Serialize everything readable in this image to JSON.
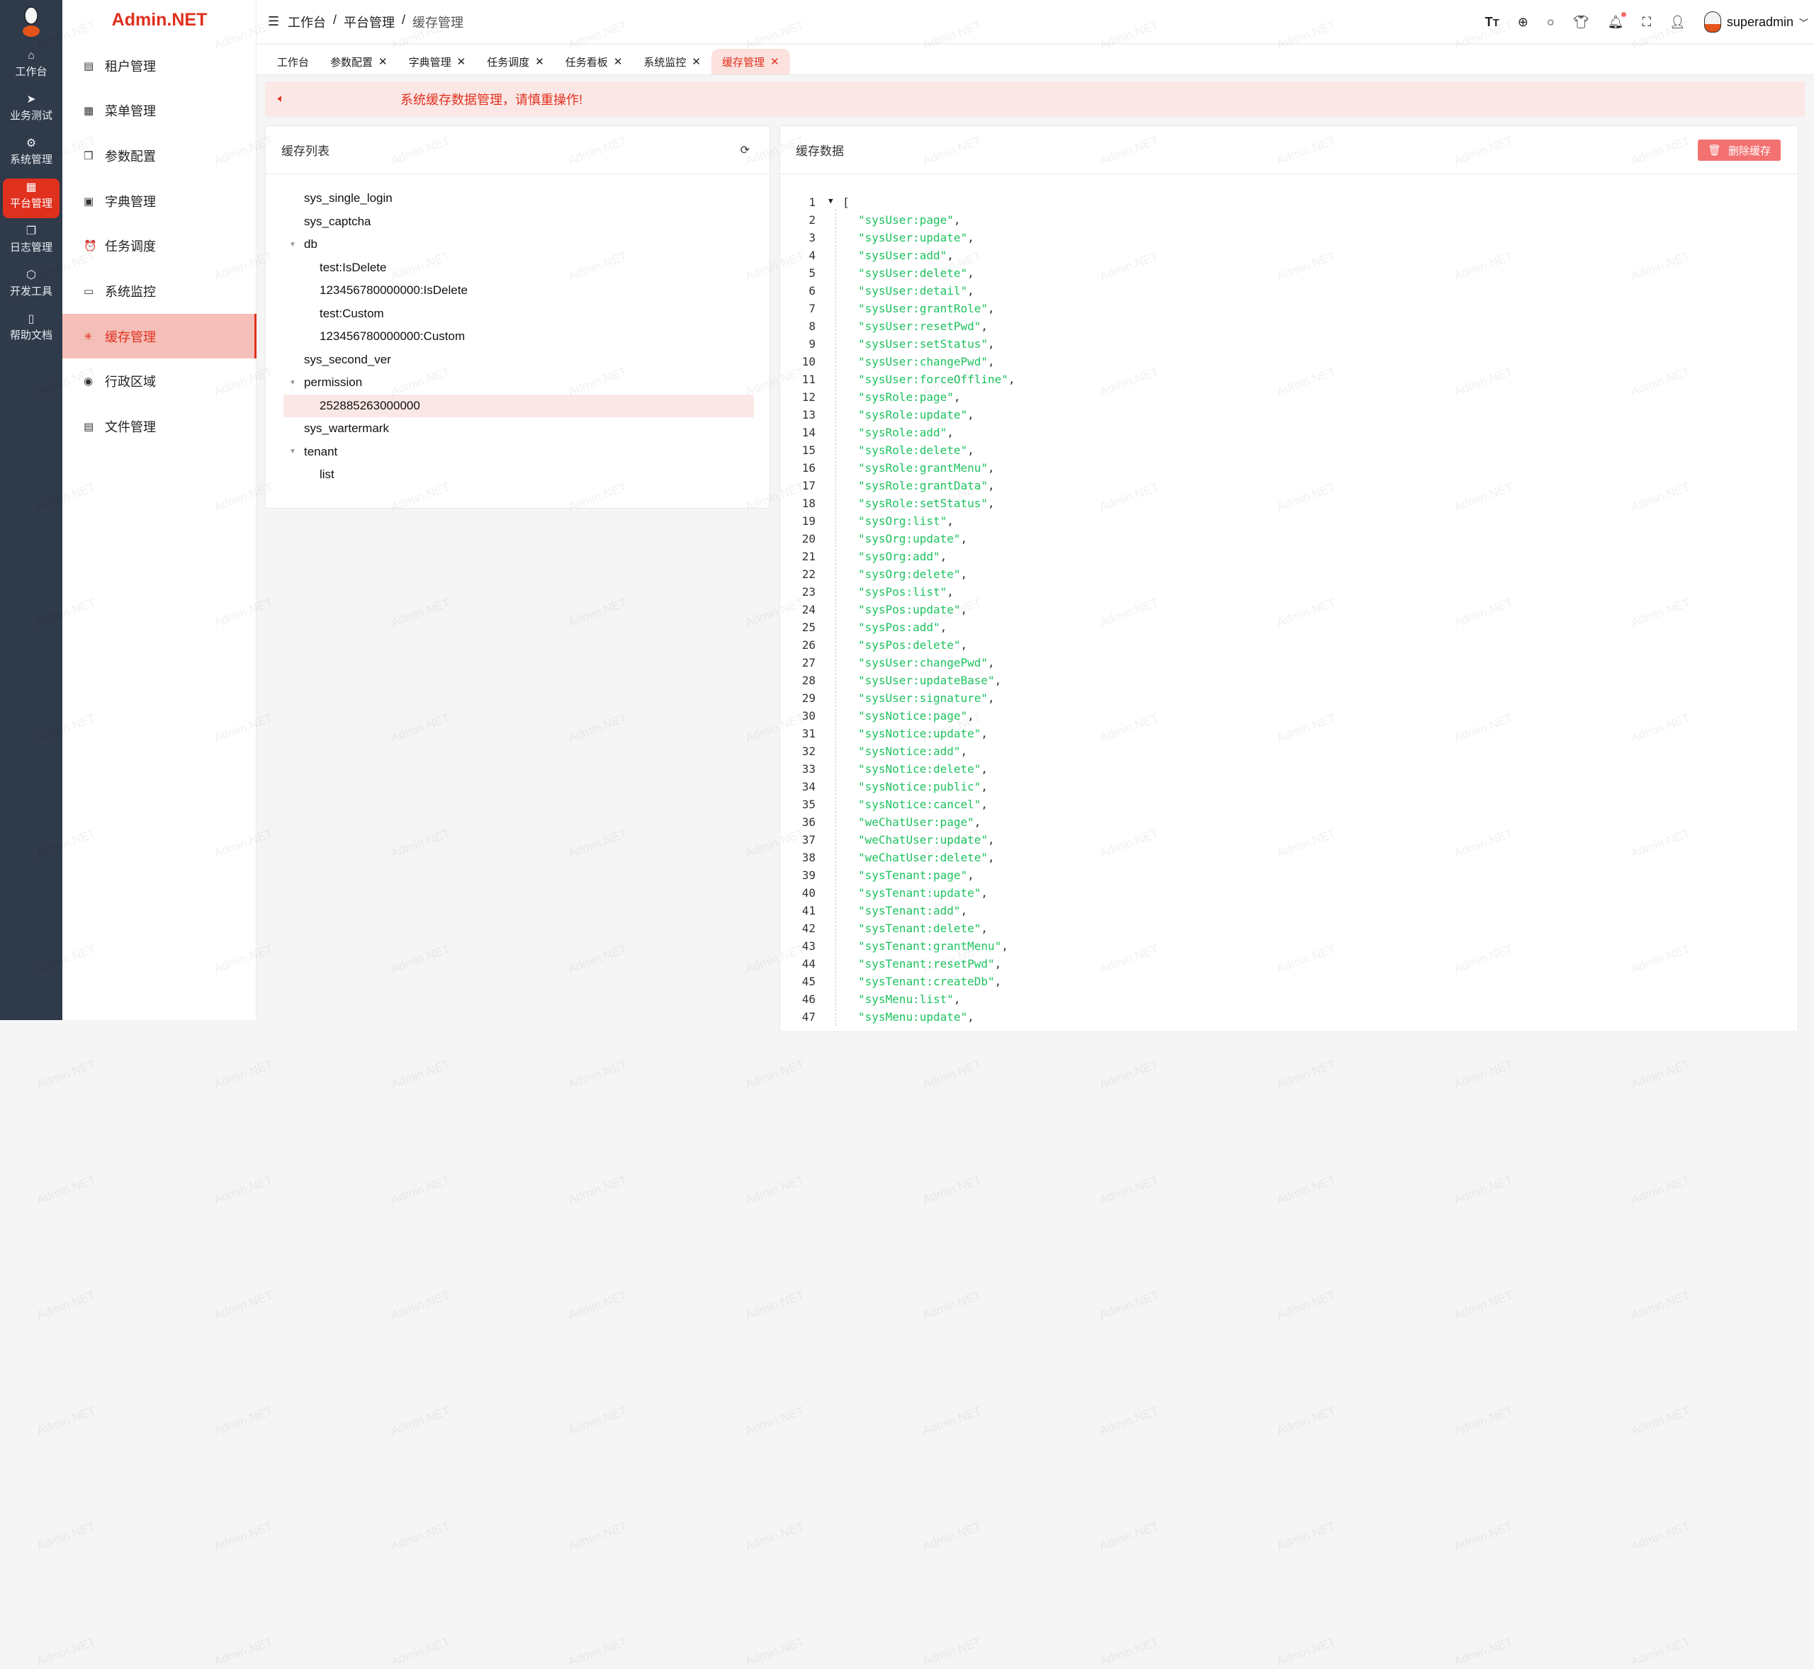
{
  "brand": "Admin.NET",
  "watermark": "Admin.NET",
  "rail": [
    {
      "label": "工作台",
      "icon": "home-icon",
      "glyph": "⌂"
    },
    {
      "label": "业务测试",
      "icon": "send-icon",
      "glyph": "➤"
    },
    {
      "label": "系统管理",
      "icon": "gear-icon",
      "glyph": "⚙"
    },
    {
      "label": "平台管理",
      "icon": "grid-icon",
      "glyph": "▦",
      "active": true
    },
    {
      "label": "日志管理",
      "icon": "copy-icon",
      "glyph": "❐"
    },
    {
      "label": "开发工具",
      "icon": "chip-icon",
      "glyph": "⬡"
    },
    {
      "label": "帮助文档",
      "icon": "notebook-icon",
      "glyph": "▯"
    }
  ],
  "submenu": [
    {
      "label": "租户管理",
      "icon": "building-icon",
      "glyph": "▤"
    },
    {
      "label": "菜单管理",
      "icon": "grid-icon",
      "glyph": "▦"
    },
    {
      "label": "参数配置",
      "icon": "copy-icon",
      "glyph": "❐"
    },
    {
      "label": "字典管理",
      "icon": "book-icon",
      "glyph": "▣"
    },
    {
      "label": "任务调度",
      "icon": "alarm-icon",
      "glyph": "⏰"
    },
    {
      "label": "系统监控",
      "icon": "monitor-icon",
      "glyph": "▭"
    },
    {
      "label": "缓存管理",
      "icon": "loading-icon",
      "glyph": "✳",
      "active": true
    },
    {
      "label": "行政区域",
      "icon": "location-icon",
      "glyph": "◉"
    },
    {
      "label": "文件管理",
      "icon": "document-icon",
      "glyph": "▤"
    }
  ],
  "breadcrumb": [
    "工作台",
    "平台管理",
    "缓存管理"
  ],
  "breadcrumb_sep": "/",
  "user": {
    "name": "superadmin"
  },
  "tabs": [
    {
      "label": "工作台",
      "closable": false
    },
    {
      "label": "参数配置",
      "closable": true
    },
    {
      "label": "字典管理",
      "closable": true
    },
    {
      "label": "任务调度",
      "closable": true
    },
    {
      "label": "任务看板",
      "closable": true
    },
    {
      "label": "系统监控",
      "closable": true
    },
    {
      "label": "缓存管理",
      "closable": true,
      "active": true
    }
  ],
  "alert": "系统缓存数据管理，请慎重操作!",
  "cache_list": {
    "title": "缓存列表",
    "nodes": [
      {
        "label": "sys_single_login",
        "level": 0
      },
      {
        "label": "sys_captcha",
        "level": 0
      },
      {
        "label": "db",
        "level": 0,
        "expanded": true
      },
      {
        "label": "test:IsDelete",
        "level": 1
      },
      {
        "label": "123456780000000:IsDelete",
        "level": 1
      },
      {
        "label": "test:Custom",
        "level": 1
      },
      {
        "label": "123456780000000:Custom",
        "level": 1
      },
      {
        "label": "sys_second_ver",
        "level": 0
      },
      {
        "label": "permission",
        "level": 0,
        "expanded": true
      },
      {
        "label": "252885263000000",
        "level": 1,
        "selected": true
      },
      {
        "label": "sys_wartermark",
        "level": 0
      },
      {
        "label": "tenant",
        "level": 0,
        "expanded": true
      },
      {
        "label": "list",
        "level": 1
      }
    ]
  },
  "cache_data": {
    "title": "缓存数据",
    "delete_label": "删除缓存",
    "open_bracket": "[",
    "items": [
      "sysUser:page",
      "sysUser:update",
      "sysUser:add",
      "sysUser:delete",
      "sysUser:detail",
      "sysUser:grantRole",
      "sysUser:resetPwd",
      "sysUser:setStatus",
      "sysUser:changePwd",
      "sysUser:forceOffline",
      "sysRole:page",
      "sysRole:update",
      "sysRole:add",
      "sysRole:delete",
      "sysRole:grantMenu",
      "sysRole:grantData",
      "sysRole:setStatus",
      "sysOrg:list",
      "sysOrg:update",
      "sysOrg:add",
      "sysOrg:delete",
      "sysPos:list",
      "sysPos:update",
      "sysPos:add",
      "sysPos:delete",
      "sysUser:changePwd",
      "sysUser:updateBase",
      "sysUser:signature",
      "sysNotice:page",
      "sysNotice:update",
      "sysNotice:add",
      "sysNotice:delete",
      "sysNotice:public",
      "sysNotice:cancel",
      "weChatUser:page",
      "weChatUser:update",
      "weChatUser:delete",
      "sysTenant:page",
      "sysTenant:update",
      "sysTenant:add",
      "sysTenant:delete",
      "sysTenant:grantMenu",
      "sysTenant:resetPwd",
      "sysTenant:createDb",
      "sysMenu:list",
      "sysMenu:update"
    ]
  },
  "colors": {
    "accent": "#e0301e",
    "rail_bg": "#2f3a4a",
    "json_string": "#1ec25f",
    "delete_button": "#f47171"
  }
}
